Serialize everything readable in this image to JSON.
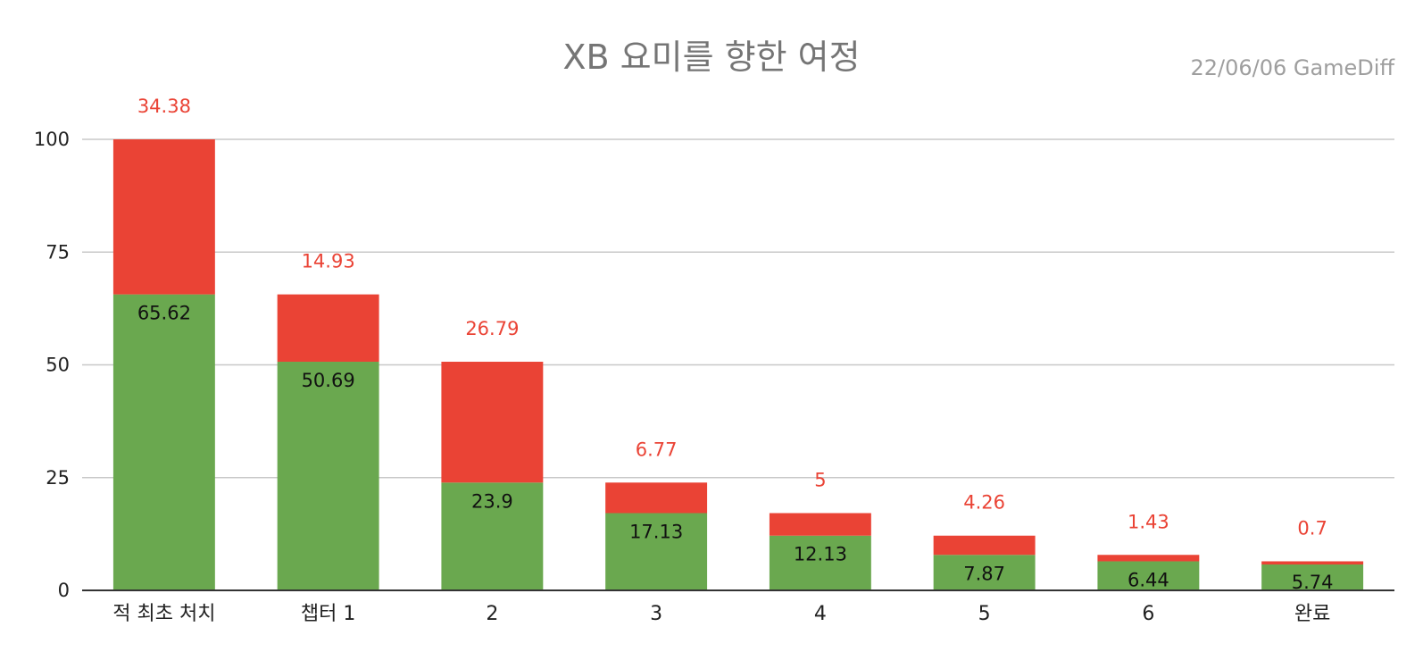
{
  "chart_data": {
    "type": "bar",
    "stacked": true,
    "title": "XB 요미를 향한 여정",
    "annotation": "22/06/06  GameDiff",
    "categories": [
      "적 최초 처치",
      "챕터 1",
      "2",
      "3",
      "4",
      "5",
      "6",
      "완료"
    ],
    "series": [
      {
        "color": "#6aa84f",
        "values": [
          65.62,
          50.69,
          23.9,
          17.13,
          12.13,
          7.87,
          6.44,
          5.74
        ]
      },
      {
        "color": "#ea4335",
        "values": [
          34.38,
          14.93,
          26.79,
          6.77,
          5,
          4.26,
          1.43,
          0.7
        ]
      }
    ],
    "ylim": [
      0,
      100
    ],
    "yticks": [
      0,
      25,
      50,
      75,
      100
    ],
    "grid": true,
    "legend": "none"
  }
}
